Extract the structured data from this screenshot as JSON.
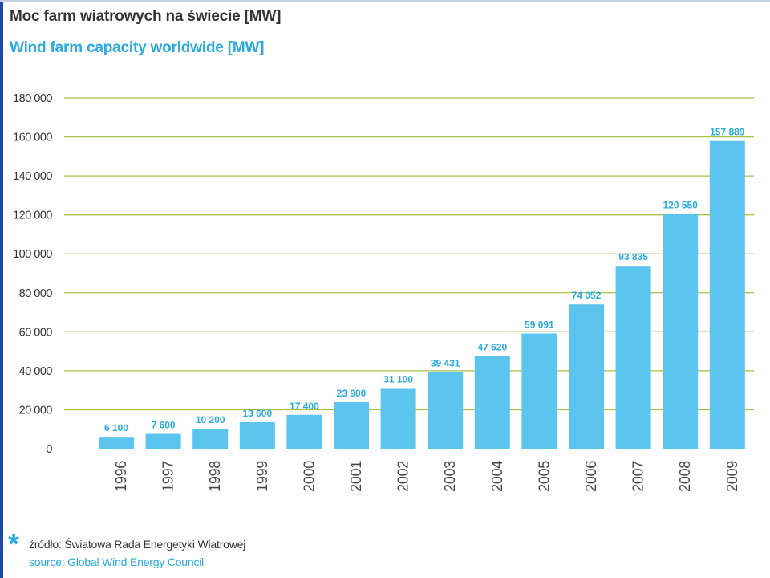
{
  "page": {
    "title": "Moc farm wiatrowych na świecie [MW]",
    "subtitle": "Wind farm capacity worldwide [MW]"
  },
  "chart_data": {
    "type": "bar",
    "categories": [
      "1996",
      "1997",
      "1998",
      "1999",
      "2000",
      "2001",
      "2002",
      "2003",
      "2004",
      "2005",
      "2006",
      "2007",
      "2008",
      "2009"
    ],
    "values": [
      6100,
      7600,
      10200,
      13600,
      17400,
      23900,
      31100,
      39431,
      47620,
      59091,
      74052,
      93835,
      120550,
      157889
    ],
    "value_labels": [
      "6 100",
      "7 600",
      "10 200",
      "13 600",
      "17 400",
      "23 900",
      "31 100",
      "39 431",
      "47 620",
      "59 091",
      "74 052",
      "93 835",
      "120 550",
      "157 889"
    ],
    "title": "Moc farm wiatrowych na świecie [MW]",
    "subtitle": "Wind farm capacity worldwide [MW]",
    "xlabel": "",
    "ylabel": "",
    "ylim": [
      0,
      180000
    ],
    "yticks": [
      0,
      20000,
      40000,
      60000,
      80000,
      100000,
      120000,
      140000,
      160000,
      180000
    ],
    "ytick_labels": [
      "0",
      "20 000",
      "40 000",
      "60 000",
      "80 000",
      "100 000",
      "120 000",
      "140 000",
      "160 000",
      "180 000"
    ],
    "grid": true,
    "legend": "none",
    "colors": {
      "bar": "#5bc4ef",
      "value_label": "#29abe2",
      "gridline": "#a6c04a",
      "tick_label": "#333333"
    }
  },
  "source": {
    "marker": "*",
    "pl": "źródło: Światowa Rada Energetyki Wiatrowej",
    "en": "source: Global Wind Energy Council"
  }
}
